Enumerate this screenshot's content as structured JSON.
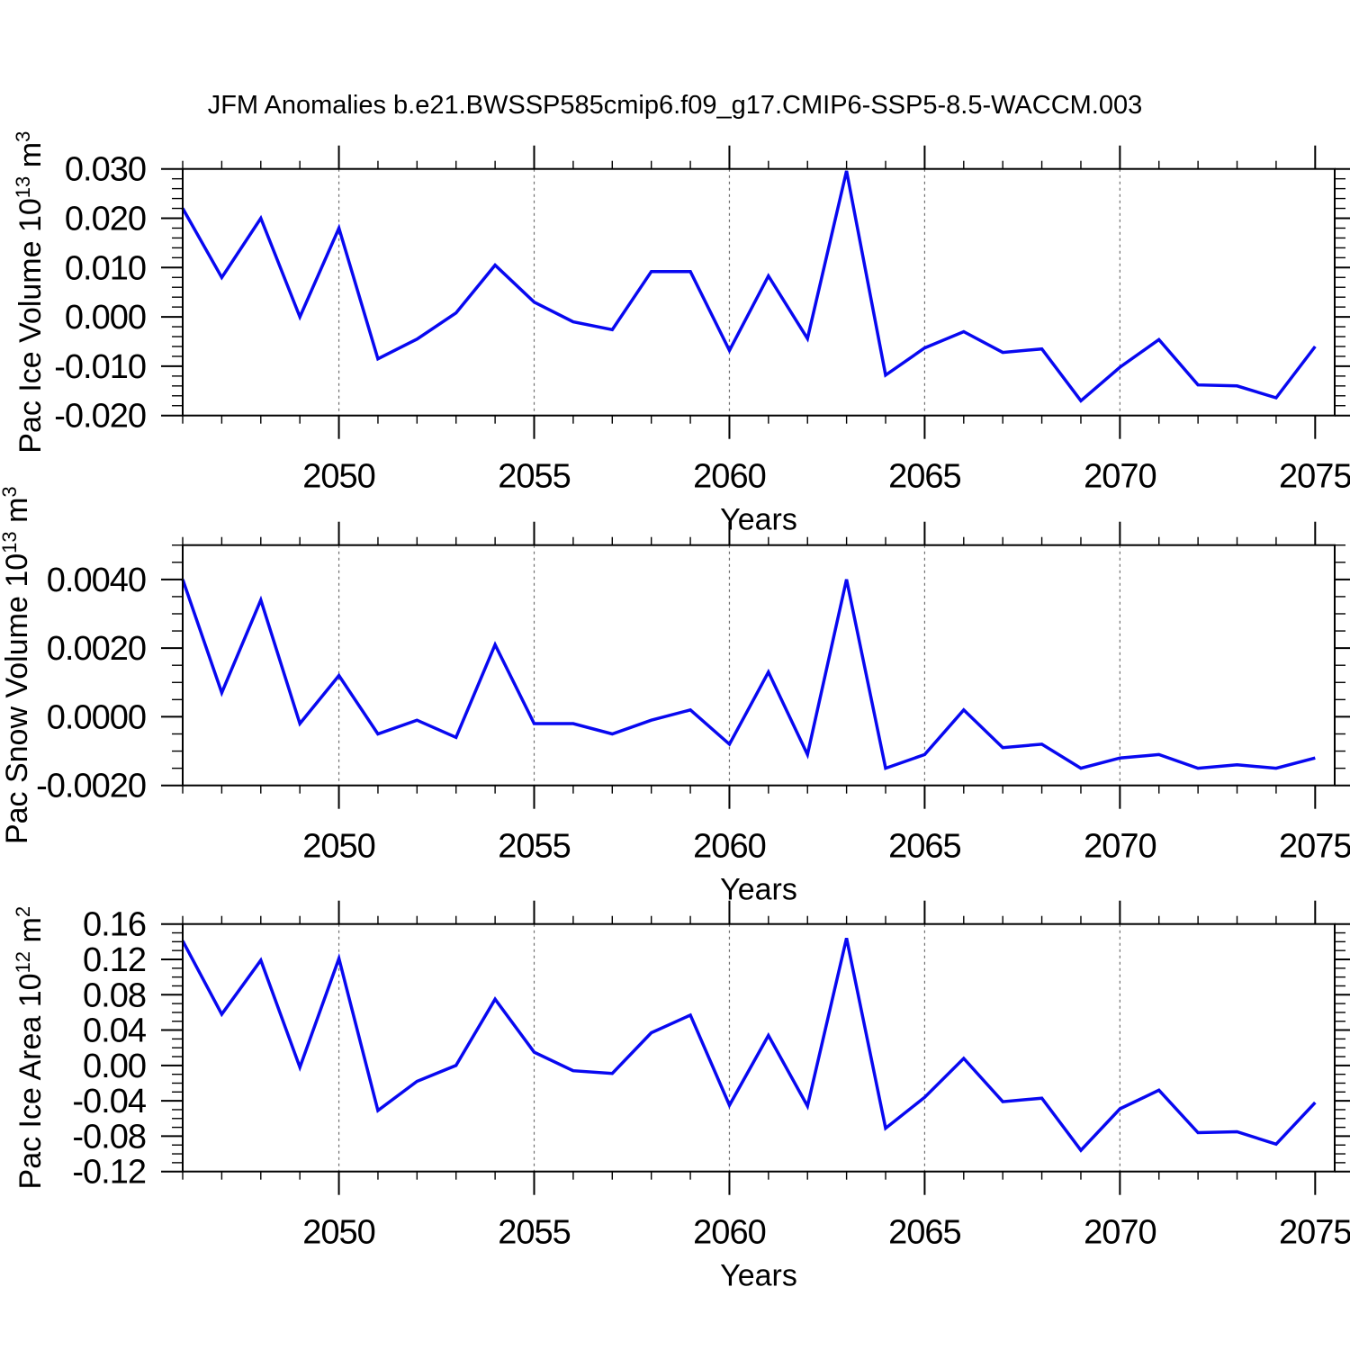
{
  "title": "JFM Anomalies b.e21.BWSSP585cmip6.f09_g17.CMIP6-SSP5-8.5-WACCM.003",
  "figure": {
    "background": "#ffffff",
    "line_color": "#0808f0",
    "grid_color": "#6e6e6e",
    "axis_color": "#000000",
    "xlim": [
      2046,
      2075.5
    ],
    "x_major_ticks": [
      2050,
      2055,
      2060,
      2065,
      2070,
      2075
    ],
    "x_tick_labels": [
      "2050",
      "2055",
      "2060",
      "2065",
      "2070",
      "2075"
    ],
    "x_grid_years": [
      2050,
      2055,
      2060,
      2065,
      2070
    ]
  },
  "chart_data": [
    {
      "type": "line",
      "name": "pac-ice-volume",
      "xlabel": "Years",
      "ylabel": {
        "text": "Pac Ice Volume 10",
        "exp": "13",
        "unit": " m",
        "unit_exp": "3"
      },
      "x": [
        2046,
        2047,
        2048,
        2049,
        2050,
        2051,
        2052,
        2053,
        2054,
        2055,
        2056,
        2057,
        2058,
        2059,
        2060,
        2061,
        2062,
        2063,
        2064,
        2065,
        2066,
        2067,
        2068,
        2069,
        2070,
        2071,
        2072,
        2073,
        2074,
        2075
      ],
      "values": [
        0.022,
        0.008,
        0.02,
        0.0,
        0.018,
        -0.0085,
        -0.0045,
        0.0008,
        0.0105,
        0.003,
        -0.001,
        -0.0026,
        0.0092,
        0.0092,
        -0.0068,
        0.0083,
        -0.0044,
        0.0296,
        -0.0118,
        -0.0063,
        -0.003,
        -0.0072,
        -0.0065,
        -0.017,
        -0.0102,
        -0.0046,
        -0.0138,
        -0.014,
        -0.0164,
        -0.006
      ],
      "ylim": [
        -0.02,
        0.03
      ],
      "y_major_ticks": [
        0.03,
        0.02,
        0.01,
        0.0,
        -0.01,
        -0.02
      ],
      "y_tick_labels": [
        "0.030",
        "0.020",
        "0.010",
        "0.000",
        "-0.010",
        "-0.020"
      ],
      "y_minor_step": 0.002,
      "grid": "vertical-dashed",
      "legend": "none"
    },
    {
      "type": "line",
      "name": "pac-snow-volume",
      "xlabel": "Years",
      "ylabel": {
        "text": "Pac Snow Volume 10",
        "exp": "13",
        "unit": " m",
        "unit_exp": "3"
      },
      "x": [
        2046,
        2047,
        2048,
        2049,
        2050,
        2051,
        2052,
        2053,
        2054,
        2055,
        2056,
        2057,
        2058,
        2059,
        2060,
        2061,
        2062,
        2063,
        2064,
        2065,
        2066,
        2067,
        2068,
        2069,
        2070,
        2071,
        2072,
        2073,
        2074,
        2075
      ],
      "values": [
        0.004,
        0.0007,
        0.0034,
        -0.0002,
        0.0012,
        -0.0005,
        -0.0001,
        -0.0006,
        0.0021,
        -0.0002,
        -0.0002,
        -0.0005,
        -0.0001,
        0.0002,
        -0.0008,
        0.0013,
        -0.0011,
        0.004,
        -0.0015,
        -0.0011,
        0.0002,
        -0.0009,
        -0.0008,
        -0.0015,
        -0.0012,
        -0.0011,
        -0.0015,
        -0.0014,
        -0.0015,
        -0.0012
      ],
      "ylim": [
        -0.002,
        0.005
      ],
      "y_major_ticks": [
        0.004,
        0.002,
        0.0,
        -0.002
      ],
      "y_tick_labels": [
        "0.0040",
        "0.0020",
        "0.0000",
        "-0.0020"
      ],
      "y_minor_step": 0.0005,
      "grid": "vertical-dashed",
      "legend": "none"
    },
    {
      "type": "line",
      "name": "pac-ice-area",
      "xlabel": "Years",
      "ylabel": {
        "text": "Pac Ice Area 10",
        "exp": "12",
        "unit": " m",
        "unit_exp": "2"
      },
      "x": [
        2046,
        2047,
        2048,
        2049,
        2050,
        2051,
        2052,
        2053,
        2054,
        2055,
        2056,
        2057,
        2058,
        2059,
        2060,
        2061,
        2062,
        2063,
        2064,
        2065,
        2066,
        2067,
        2068,
        2069,
        2070,
        2071,
        2072,
        2073,
        2074,
        2075
      ],
      "values": [
        0.141,
        0.058,
        0.119,
        -0.002,
        0.121,
        -0.051,
        -0.018,
        0.0,
        0.075,
        0.015,
        -0.006,
        -0.009,
        0.037,
        0.057,
        -0.045,
        0.034,
        -0.046,
        0.144,
        -0.071,
        -0.036,
        0.008,
        -0.041,
        -0.037,
        -0.096,
        -0.049,
        -0.028,
        -0.076,
        -0.075,
        -0.089,
        -0.042
      ],
      "ylim": [
        -0.12,
        0.16
      ],
      "y_major_ticks": [
        0.16,
        0.12,
        0.08,
        0.04,
        0.0,
        -0.04,
        -0.08,
        -0.12
      ],
      "y_tick_labels": [
        "0.16",
        "0.12",
        "0.08",
        "0.04",
        "0.00",
        "-0.04",
        "-0.08",
        "-0.12"
      ],
      "y_minor_step": 0.01,
      "grid": "vertical-dashed",
      "legend": "none"
    }
  ]
}
